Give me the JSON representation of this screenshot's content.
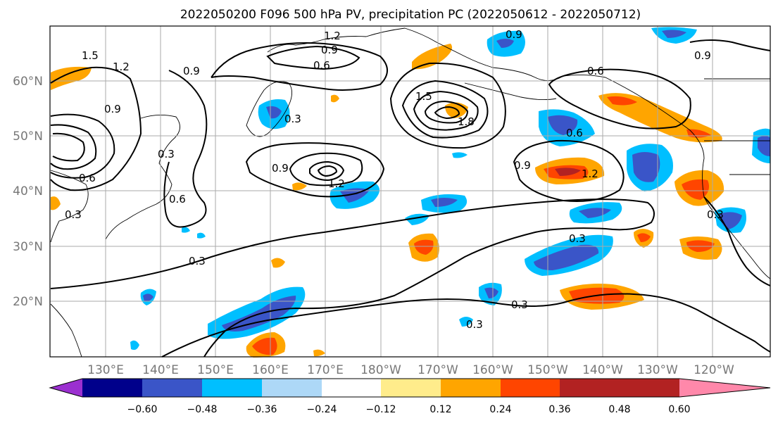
{
  "title": "2022050200 F096 500 hPa PV, precipitation PC (2022050612 - 2022050712)",
  "latitude_labels": [
    "60°N",
    "50°N",
    "40°N",
    "30°N",
    "20°N"
  ],
  "longitude_labels": [
    "130°E",
    "140°E",
    "150°E",
    "160°E",
    "170°E",
    "180°W",
    "170°W",
    "160°W",
    "150°W",
    "140°W",
    "130°W",
    "120°W"
  ],
  "contour_labels": [
    "1.2",
    "0.9",
    "0.6",
    "1.5",
    "0.9",
    "1.2",
    "0.9",
    "0.3",
    "1.5",
    "1.8",
    "0.9",
    "0.6",
    "0.9",
    "0.3",
    "0.6",
    "0.3",
    "1.2",
    "0.9",
    "0.6",
    "1.2",
    "0.3",
    "0.3",
    "0.3",
    "0.3",
    "0.9",
    "0.3",
    "0.6"
  ],
  "colorbar": {
    "ticks": [
      "−0.60",
      "−0.48",
      "−0.36",
      "−0.24",
      "−0.12",
      "0.12",
      "0.24",
      "0.36",
      "0.48",
      "0.60"
    ],
    "colors": [
      "#9b30d0",
      "#00008b",
      "#3a55c8",
      "#00bfff",
      "#add8f7",
      "#ffffff",
      "#ffec8b",
      "#ffa500",
      "#ff4500",
      "#b22222",
      "#ff88aa"
    ]
  },
  "legend_colors": {
    "neg_strong": "#3a55c8",
    "neg_mid": "#00bfff",
    "pos_mid": "#ffa500",
    "pos_strong": "#ff4500",
    "pos_max": "#b22222"
  }
}
